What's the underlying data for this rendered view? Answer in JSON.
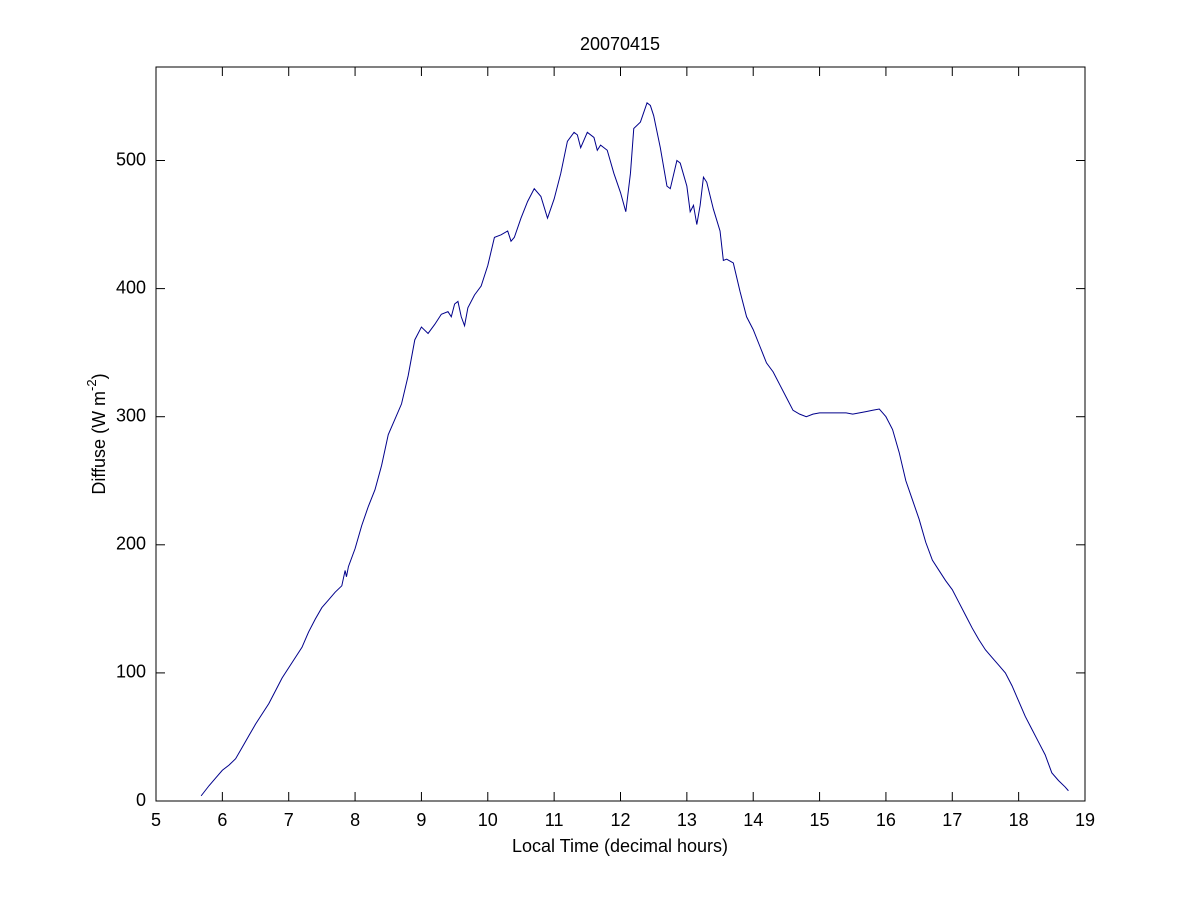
{
  "chart_data": {
    "type": "line",
    "title": "20070415",
    "x_label": "Local Time (decimal hours)",
    "y_label": {
      "text": "Diffuse (W m",
      "superscript": "-2",
      "suffix": ")"
    },
    "xlim": [
      5,
      19
    ],
    "xticks": [
      5,
      6,
      7,
      8,
      9,
      10,
      11,
      12,
      13,
      14,
      15,
      16,
      17,
      18,
      19
    ],
    "ylim": [
      0,
      573
    ],
    "yticks": [
      0,
      100,
      200,
      300,
      400,
      500
    ],
    "series": [
      {
        "color": "#00008b",
        "x": [
          5.68,
          5.8,
          5.9,
          6.0,
          6.1,
          6.2,
          6.3,
          6.4,
          6.5,
          6.6,
          6.7,
          6.8,
          6.9,
          7.0,
          7.1,
          7.2,
          7.3,
          7.4,
          7.5,
          7.6,
          7.7,
          7.8,
          7.85,
          7.87,
          7.9,
          8.0,
          8.1,
          8.2,
          8.3,
          8.4,
          8.5,
          8.6,
          8.7,
          8.8,
          8.9,
          9.0,
          9.1,
          9.2,
          9.3,
          9.4,
          9.45,
          9.5,
          9.55,
          9.6,
          9.65,
          9.7,
          9.8,
          9.9,
          10.0,
          10.1,
          10.2,
          10.3,
          10.35,
          10.4,
          10.5,
          10.6,
          10.7,
          10.8,
          10.9,
          11.0,
          11.1,
          11.2,
          11.3,
          11.35,
          11.4,
          11.5,
          11.6,
          11.65,
          11.7,
          11.8,
          11.9,
          12.0,
          12.08,
          12.15,
          12.2,
          12.3,
          12.4,
          12.45,
          12.5,
          12.6,
          12.7,
          12.75,
          12.85,
          12.9,
          13.0,
          13.05,
          13.1,
          13.15,
          13.2,
          13.25,
          13.3,
          13.4,
          13.5,
          13.55,
          13.6,
          13.7,
          13.8,
          13.9,
          14.0,
          14.1,
          14.2,
          14.3,
          14.4,
          14.5,
          14.6,
          14.7,
          14.8,
          14.9,
          15.0,
          15.2,
          15.4,
          15.5,
          15.6,
          15.7,
          15.8,
          15.9,
          15.95,
          16.0,
          16.1,
          16.2,
          16.3,
          16.4,
          16.5,
          16.6,
          16.7,
          16.8,
          16.9,
          17.0,
          17.1,
          17.2,
          17.3,
          17.4,
          17.5,
          17.6,
          17.7,
          17.8,
          17.9,
          18.0,
          18.1,
          18.2,
          18.3,
          18.4,
          18.5,
          18.6,
          18.7,
          18.75
        ],
        "values": [
          4,
          12,
          18,
          24,
          28,
          33,
          42,
          51,
          60,
          68,
          76,
          86,
          96,
          104,
          112,
          120,
          132,
          142,
          151,
          157,
          163,
          168,
          180,
          175,
          183,
          197,
          215,
          230,
          243,
          262,
          286,
          298,
          310,
          332,
          360,
          370,
          365,
          372,
          380,
          382,
          378,
          388,
          390,
          378,
          371,
          385,
          395,
          402,
          418,
          440,
          442,
          445,
          437,
          440,
          455,
          468,
          478,
          472,
          455,
          470,
          490,
          515,
          522,
          520,
          510,
          522,
          518,
          508,
          512,
          508,
          490,
          475,
          460,
          490,
          525,
          530,
          545,
          543,
          535,
          510,
          480,
          478,
          500,
          498,
          480,
          460,
          465,
          450,
          465,
          487,
          483,
          462,
          445,
          422,
          423,
          420,
          398,
          378,
          368,
          355,
          342,
          335,
          325,
          315,
          305,
          302,
          300,
          302,
          303,
          303,
          303,
          302,
          303,
          304,
          305,
          306,
          303,
          300,
          290,
          272,
          250,
          235,
          220,
          202,
          188,
          180,
          172,
          165,
          155,
          145,
          135,
          126,
          118,
          112,
          106,
          100,
          90,
          78,
          66,
          56,
          46,
          36,
          22,
          16,
          11,
          8
        ]
      }
    ]
  }
}
